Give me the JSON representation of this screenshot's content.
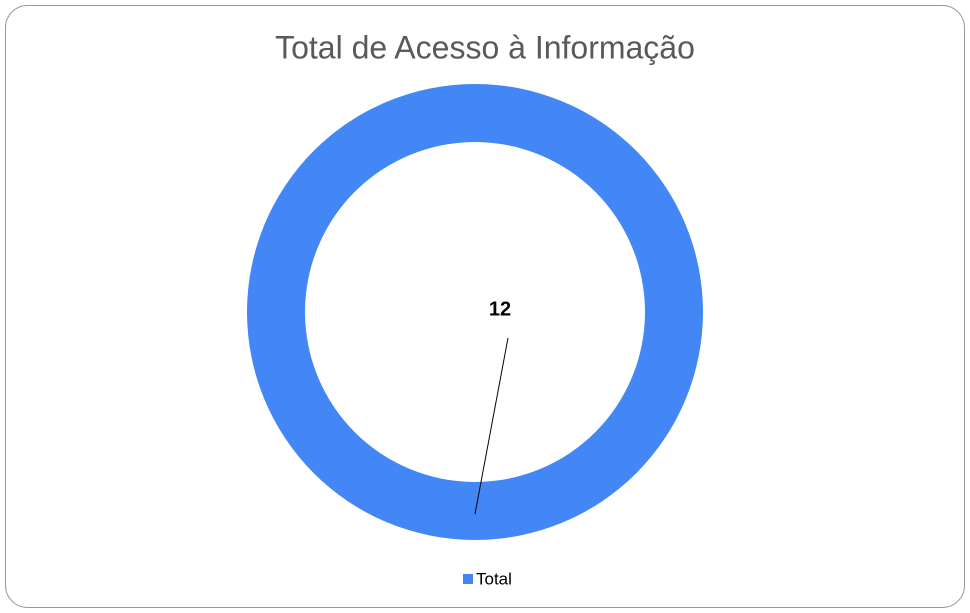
{
  "chart_data": {
    "type": "donut",
    "title": "Total de Acesso à Informação",
    "categories": [
      "Total"
    ],
    "values": [
      12
    ],
    "colors": [
      "#4287f5"
    ],
    "legend": "bottom"
  }
}
